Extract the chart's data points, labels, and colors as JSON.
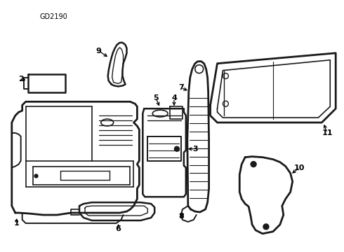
{
  "title": "GD2190",
  "background_color": "#ffffff",
  "line_color": "#1a1a1a",
  "figsize": [
    4.9,
    3.6
  ],
  "dpi": 100
}
